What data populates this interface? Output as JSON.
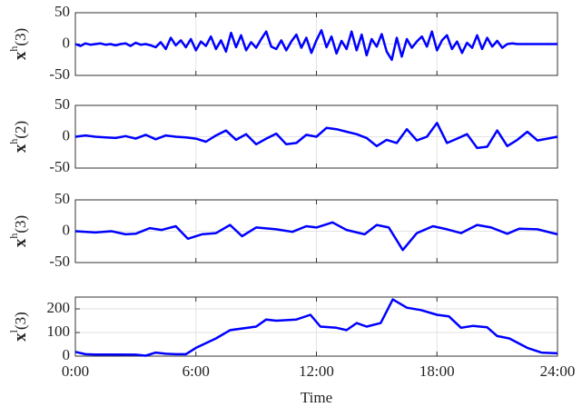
{
  "chart_data": [
    {
      "type": "line",
      "ylabel": {
        "base": "x",
        "sup": "h",
        "arg": "(3)"
      },
      "xlim": [
        0,
        24
      ],
      "ylim": [
        -50,
        50
      ],
      "yticks": [
        -50,
        0,
        50
      ],
      "grid": true,
      "series": [
        {
          "color": "#0000ff",
          "x": [
            0,
            0.25,
            0.5,
            0.75,
            1,
            1.25,
            1.5,
            1.75,
            2,
            2.25,
            2.5,
            2.75,
            3,
            3.25,
            3.5,
            3.75,
            4,
            4.25,
            4.5,
            4.75,
            5,
            5.25,
            5.5,
            5.75,
            6,
            6.25,
            6.5,
            6.75,
            7,
            7.25,
            7.5,
            7.75,
            8,
            8.25,
            8.5,
            8.75,
            9,
            9.25,
            9.5,
            9.75,
            10,
            10.25,
            10.5,
            10.75,
            11,
            11.25,
            11.5,
            11.75,
            12,
            12.25,
            12.5,
            12.75,
            13,
            13.25,
            13.5,
            13.75,
            14,
            14.25,
            14.5,
            14.75,
            15,
            15.25,
            15.5,
            15.75,
            16,
            16.25,
            16.5,
            16.75,
            17,
            17.25,
            17.5,
            17.75,
            18,
            18.25,
            18.5,
            18.75,
            19,
            19.25,
            19.5,
            19.75,
            20,
            20.25,
            20.5,
            20.75,
            21,
            21.25,
            21.5,
            21.75,
            22,
            22.25,
            22.5,
            22.75,
            23,
            23.25,
            23.5,
            23.75,
            24
          ],
          "values": [
            0,
            -3,
            1,
            -1,
            0,
            1,
            -1,
            0,
            -2,
            0,
            1,
            -3,
            2,
            -1,
            0,
            -2,
            -5,
            3,
            -8,
            10,
            -2,
            6,
            -5,
            8,
            -10,
            4,
            -3,
            12,
            -8,
            6,
            -12,
            18,
            -5,
            14,
            -10,
            3,
            -6,
            8,
            20,
            -4,
            -8,
            6,
            -10,
            4,
            15,
            -6,
            10,
            -14,
            6,
            22,
            -5,
            12,
            -15,
            5,
            -8,
            20,
            -10,
            15,
            -18,
            8,
            -4,
            16,
            -12,
            -25,
            10,
            -20,
            8,
            -6,
            4,
            12,
            -4,
            20,
            -10,
            6,
            14,
            -8,
            4,
            -14,
            2,
            -6,
            14,
            -8,
            10,
            -4,
            5,
            -6,
            0,
            1,
            0,
            0,
            0,
            0,
            0,
            0,
            0,
            0,
            0
          ]
        }
      ]
    },
    {
      "type": "line",
      "ylabel": {
        "base": "x",
        "sup": "h",
        "arg": "(2)"
      },
      "xlim": [
        0,
        24
      ],
      "ylim": [
        -50,
        50
      ],
      "yticks": [
        -50,
        0,
        50
      ],
      "grid": true,
      "series": [
        {
          "color": "#0000ff",
          "x": [
            0,
            0.5,
            1,
            1.5,
            2,
            2.5,
            3,
            3.5,
            4,
            4.5,
            5,
            5.5,
            6,
            6.5,
            7,
            7.5,
            8,
            8.5,
            9,
            9.5,
            10,
            10.5,
            11,
            11.5,
            12,
            12.5,
            13,
            13.5,
            14,
            14.5,
            15,
            15.5,
            16,
            16.5,
            17,
            17.5,
            18,
            18.5,
            19,
            19.5,
            20,
            20.5,
            21,
            21.5,
            22,
            22.5,
            23,
            23.5,
            24
          ],
          "values": [
            0,
            2,
            0,
            -1,
            -2,
            1,
            -3,
            3,
            -4,
            2,
            0,
            -1,
            -3,
            -8,
            2,
            10,
            -5,
            4,
            -12,
            -3,
            5,
            -12,
            -10,
            3,
            0,
            14,
            12,
            8,
            4,
            -2,
            -15,
            -5,
            -10,
            12,
            -6,
            0,
            22,
            -10,
            -3,
            4,
            -18,
            -16,
            10,
            -15,
            -5,
            8,
            -6,
            -3,
            0
          ]
        }
      ]
    },
    {
      "type": "line",
      "ylabel": {
        "base": "x",
        "sup": "h",
        "arg": "(3)"
      },
      "xlim": [
        0,
        24
      ],
      "ylim": [
        -50,
        50
      ],
      "yticks": [
        -50,
        0,
        50
      ],
      "grid": true,
      "series": [
        {
          "color": "#0000ff",
          "x": [
            0,
            1,
            1.8,
            2.5,
            3,
            3.7,
            4.3,
            5,
            5.6,
            6.3,
            7,
            7.7,
            8.3,
            9,
            10,
            10.8,
            11.5,
            12,
            12.8,
            13.5,
            14.4,
            15,
            15.6,
            16.3,
            17,
            17.8,
            18.5,
            19.2,
            20,
            20.7,
            21.5,
            22.1,
            23,
            24
          ],
          "values": [
            0,
            -2,
            0,
            -5,
            -4,
            5,
            2,
            8,
            -12,
            -5,
            -3,
            10,
            -8,
            6,
            3,
            -1,
            8,
            6,
            14,
            2,
            -5,
            10,
            6,
            -30,
            -3,
            8,
            3,
            -3,
            10,
            6,
            -4,
            4,
            3,
            -5
          ]
        }
      ]
    },
    {
      "type": "line",
      "ylabel": {
        "base": "x",
        "sup": "l",
        "arg": "(3)"
      },
      "xlabel": "Time",
      "xlim": [
        0,
        24
      ],
      "xticks": [
        {
          "value": 0,
          "label": "0:00"
        },
        {
          "value": 6,
          "label": "6:00"
        },
        {
          "value": 12,
          "label": "12:00"
        },
        {
          "value": 18,
          "label": "18:00"
        },
        {
          "value": 24,
          "label": "24:00"
        }
      ],
      "ylim": [
        0,
        250
      ],
      "yticks": [
        0,
        100,
        200
      ],
      "grid": true,
      "series": [
        {
          "color": "#0000ff",
          "x": [
            0,
            0.5,
            1,
            2,
            3,
            3.5,
            4,
            4.5,
            5,
            5.5,
            6,
            7,
            7.7,
            9,
            9.5,
            10,
            11,
            11.7,
            12.2,
            13,
            13.5,
            14,
            14.5,
            15.2,
            15.8,
            16.5,
            17.2,
            18,
            18.6,
            19.2,
            19.8,
            20.5,
            21,
            21.6,
            22.5,
            23.2,
            24
          ],
          "values": [
            18,
            8,
            7,
            7,
            6,
            2,
            15,
            10,
            8,
            8,
            35,
            75,
            110,
            125,
            155,
            150,
            155,
            175,
            125,
            120,
            110,
            140,
            125,
            140,
            240,
            205,
            195,
            175,
            168,
            120,
            128,
            122,
            85,
            75,
            35,
            15,
            12
          ]
        }
      ]
    }
  ]
}
